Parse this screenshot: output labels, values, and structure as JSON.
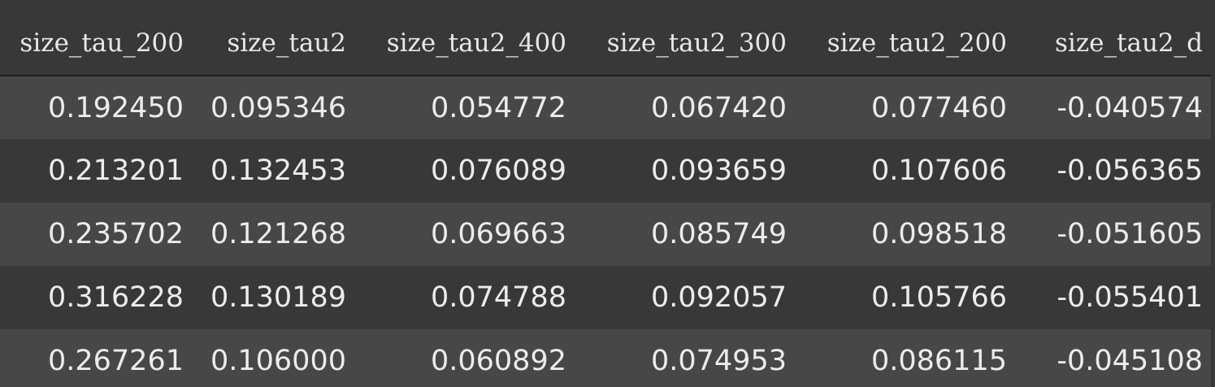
{
  "table": {
    "columns": [
      "size_tau_200",
      "size_tau2",
      "size_tau2_400",
      "size_tau2_300",
      "size_tau2_200",
      "size_tau2_d"
    ],
    "rows": [
      [
        "0.192450",
        "0.095346",
        "0.054772",
        "0.067420",
        "0.077460",
        "-0.040574"
      ],
      [
        "0.213201",
        "0.132453",
        "0.076089",
        "0.093659",
        "0.107606",
        "-0.056365"
      ],
      [
        "0.235702",
        "0.121268",
        "0.069663",
        "0.085749",
        "0.098518",
        "-0.051605"
      ],
      [
        "0.316228",
        "0.130189",
        "0.074788",
        "0.092057",
        "0.105766",
        "-0.055401"
      ],
      [
        "0.267261",
        "0.106000",
        "0.060892",
        "0.074953",
        "0.086115",
        "-0.045108"
      ]
    ]
  },
  "colors": {
    "background": "#383838",
    "row_alt": "#474747",
    "text": "#ececec"
  }
}
